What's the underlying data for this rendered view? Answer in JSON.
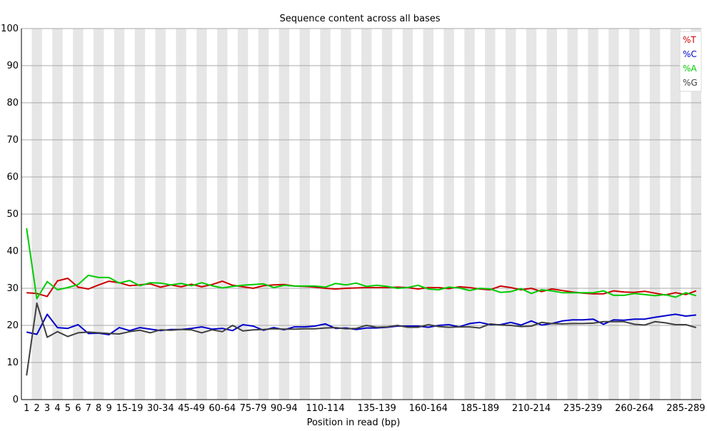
{
  "chart_data": {
    "type": "line",
    "title": "Sequence content across all bases",
    "xlabel": "Position in read (bp)",
    "ylabel": "",
    "ylim": [
      0,
      100
    ],
    "yticks": [
      0,
      10,
      20,
      30,
      40,
      50,
      60,
      70,
      80,
      90,
      100
    ],
    "grid": true,
    "legend_position": "top-right",
    "categories": [
      "1",
      "2",
      "3",
      "4",
      "5",
      "6",
      "7",
      "8",
      "9",
      "10-14",
      "15-19",
      "20-24",
      "25-29",
      "30-34",
      "35-39",
      "40-44",
      "45-49",
      "50-54",
      "55-59",
      "60-64",
      "65-69",
      "70-74",
      "75-79",
      "80-84",
      "85-89",
      "90-94",
      "95-99",
      "100-104",
      "105-109",
      "110-114",
      "115-119",
      "120-124",
      "125-129",
      "130-134",
      "135-139",
      "140-144",
      "145-149",
      "150-154",
      "155-159",
      "160-164",
      "165-169",
      "170-174",
      "175-179",
      "180-184",
      "185-189",
      "190-194",
      "195-199",
      "200-204",
      "205-209",
      "210-214",
      "215-219",
      "220-224",
      "225-229",
      "230-234",
      "235-239",
      "240-244",
      "245-249",
      "250-254",
      "255-259",
      "260-264",
      "265-269",
      "270-274",
      "275-279",
      "280-284",
      "285-289",
      "290-294"
    ],
    "tick_labels": [
      "1",
      "2",
      "3",
      "4",
      "5",
      "6",
      "7",
      "8",
      "9",
      "15-19",
      "30-34",
      "45-49",
      "60-64",
      "75-79",
      "90-94",
      "110-114",
      "135-139",
      "160-164",
      "185-189",
      "210-214",
      "235-239",
      "260-264",
      "285-289"
    ],
    "series": [
      {
        "name": "%T",
        "color": "#cc0000",
        "values": [
          28.8,
          28.6,
          27.8,
          32.0,
          32.7,
          30.3,
          29.8,
          30.9,
          31.9,
          31.5,
          30.7,
          30.9,
          31.2,
          30.3,
          30.9,
          30.4,
          31.1,
          30.4,
          31.0,
          31.9,
          30.8,
          30.4,
          30.0,
          30.7,
          30.9,
          31.0,
          30.6,
          30.5,
          30.3,
          30.0,
          29.8,
          30.0,
          30.1,
          30.2,
          30.2,
          30.2,
          30.3,
          30.2,
          29.8,
          30.2,
          30.2,
          29.9,
          30.4,
          30.2,
          29.8,
          29.6,
          30.6,
          30.2,
          29.6,
          30.0,
          29.1,
          29.8,
          29.4,
          29.0,
          28.7,
          28.5,
          28.5,
          29.3,
          29.0,
          28.9,
          29.2,
          28.7,
          28.2,
          28.8,
          28.3,
          29.3
        ]
      },
      {
        "name": "%C",
        "color": "#0000cc",
        "values": [
          18.2,
          17.6,
          23.0,
          19.4,
          19.2,
          20.2,
          17.8,
          17.9,
          17.5,
          19.4,
          18.6,
          19.4,
          19.0,
          18.6,
          18.9,
          18.9,
          19.2,
          19.6,
          19.0,
          19.2,
          18.6,
          20.2,
          19.8,
          18.7,
          19.4,
          18.8,
          19.6,
          19.6,
          19.8,
          20.4,
          19.2,
          19.3,
          18.9,
          19.3,
          19.3,
          19.5,
          19.8,
          19.8,
          19.8,
          19.5,
          20.0,
          20.2,
          19.6,
          20.5,
          20.8,
          20.2,
          20.2,
          20.8,
          20.1,
          21.2,
          20.1,
          20.5,
          21.2,
          21.5,
          21.5,
          21.7,
          20.3,
          21.5,
          21.4,
          21.7,
          21.7,
          22.2,
          22.6,
          23.0,
          22.5,
          22.8
        ]
      },
      {
        "name": "%A",
        "color": "#00cc00",
        "values": [
          46.2,
          27.2,
          31.8,
          29.6,
          30.2,
          31.0,
          33.5,
          32.9,
          32.9,
          31.4,
          32.1,
          30.7,
          31.5,
          31.4,
          30.9,
          31.3,
          30.7,
          31.5,
          30.7,
          30.1,
          30.5,
          30.8,
          31.0,
          31.2,
          30.2,
          30.8,
          30.6,
          30.6,
          30.6,
          30.3,
          31.3,
          30.9,
          31.4,
          30.5,
          30.8,
          30.5,
          30.0,
          30.2,
          30.8,
          29.8,
          29.6,
          30.3,
          30.1,
          29.4,
          30.0,
          29.8,
          28.9,
          29.1,
          29.9,
          28.6,
          29.6,
          29.3,
          28.8,
          28.8,
          28.8,
          28.8,
          29.3,
          28.1,
          28.1,
          28.6,
          28.3,
          28.0,
          28.3,
          27.6,
          28.8,
          28.0
        ]
      },
      {
        "name": "%G",
        "color": "#404040",
        "values": [
          6.5,
          26.0,
          16.8,
          18.3,
          17.0,
          18.0,
          18.2,
          18.0,
          17.8,
          17.7,
          18.3,
          18.7,
          18.0,
          18.8,
          18.7,
          18.9,
          18.8,
          18.0,
          18.8,
          18.3,
          20.0,
          18.5,
          18.8,
          18.9,
          19.1,
          19.0,
          19.0,
          19.1,
          19.1,
          19.3,
          19.4,
          19.1,
          19.2,
          20.0,
          19.5,
          19.6,
          20.0,
          19.5,
          19.5,
          20.2,
          19.7,
          19.5,
          19.6,
          19.6,
          19.3,
          20.4,
          20.1,
          20.0,
          19.7,
          19.8,
          20.8,
          20.5,
          20.4,
          20.5,
          20.5,
          20.6,
          21.0,
          21.0,
          21.0,
          20.3,
          20.1,
          21.0,
          20.7,
          20.2,
          20.2,
          19.4
        ]
      }
    ]
  }
}
